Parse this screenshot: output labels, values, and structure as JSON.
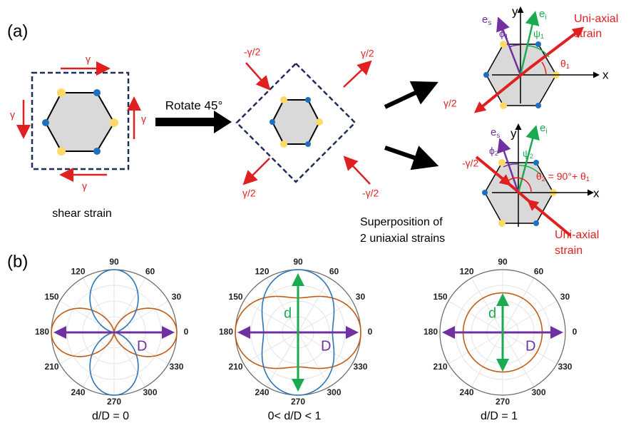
{
  "panel_a": {
    "label": "(a)",
    "shear": {
      "gamma_top": "γ",
      "gamma_left": "γ",
      "gamma_right": "γ",
      "gamma_bottom": "γ",
      "caption": "shear strain"
    },
    "rotate": "Rotate 45°",
    "rotated": {
      "top_left": "-γ/2",
      "top_right": "γ/2",
      "bottom_left": "γ/2",
      "bottom_right": "-γ/2"
    },
    "superposition": [
      "Superposition of",
      "2 uniaxial strains"
    ],
    "strain_1": {
      "y": "y",
      "x": "x",
      "e_s": {
        "base": "e",
        "sub": "s"
      },
      "e_i": {
        "base": "e",
        "sub": "i"
      },
      "phi": {
        "base": "ϕ",
        "sub": "1"
      },
      "psi": {
        "base": "ψ",
        "sub": "1"
      },
      "theta": {
        "base": "θ",
        "sub": "1"
      },
      "strain_label": [
        "Uni-axial",
        "strain"
      ],
      "gamma": "γ/2"
    },
    "strain_2": {
      "y": "y",
      "x": "x",
      "e_s": {
        "base": "e",
        "sub": "s"
      },
      "e_i": {
        "base": "e",
        "sub": "i"
      },
      "phi": {
        "base": "ϕ",
        "sub": "2"
      },
      "psi": {
        "base": "ψ",
        "sub": "2"
      },
      "gamma": "-γ/2",
      "theta": {
        "base": "θ",
        "sub": "2",
        "rest": " = 90°+ θ",
        "sub2": "1"
      },
      "strain_label": [
        "Uni-axial",
        "strain"
      ]
    }
  },
  "panel_b": {
    "label": "(b)",
    "angles": [
      0,
      30,
      60,
      90,
      120,
      150,
      180,
      210,
      240,
      270,
      300,
      330
    ],
    "plots": [
      {
        "caption": "d/D = 0",
        "big": "D"
      },
      {
        "caption": "0< d/D < 1",
        "big": "D",
        "small": "d"
      },
      {
        "caption": "d/D = 1",
        "big": "D",
        "small": "d"
      }
    ]
  }
}
